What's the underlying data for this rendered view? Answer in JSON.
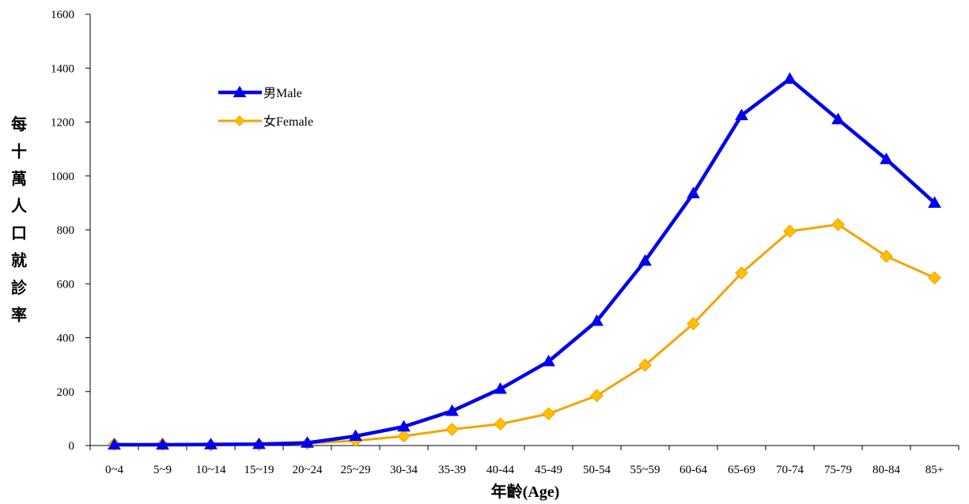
{
  "colors": {
    "male": "#0000ee",
    "female": "#f5a300",
    "female_marker": "#ffc000",
    "axis": "#000000"
  },
  "chart_data": {
    "type": "line",
    "title": "",
    "xlabel": "年齡(Age)",
    "ylabel": "每十萬人口就診率",
    "ylim": [
      0,
      1600
    ],
    "yticks": [
      0,
      200,
      400,
      600,
      800,
      1000,
      1200,
      1400,
      1600
    ],
    "grid": false,
    "legend_position": "top-left",
    "categories": [
      "0~4",
      "5~9",
      "10~14",
      "15~19",
      "20~24",
      "25~29",
      "30-34",
      "35-39",
      "40-44",
      "45-49",
      "50-54",
      "55~59",
      "60-64",
      "65-69",
      "70-74",
      "75-79",
      "80-84",
      "85+"
    ],
    "series": [
      {
        "name": "男Male",
        "marker": "triangle",
        "values": [
          3,
          3,
          4,
          5,
          10,
          35,
          70,
          128,
          210,
          312,
          462,
          685,
          935,
          1225,
          1360,
          1210,
          1062,
          900
        ]
      },
      {
        "name": "女Female",
        "marker": "diamond",
        "values": [
          5,
          5,
          2,
          4,
          8,
          18,
          35,
          60,
          80,
          118,
          185,
          298,
          452,
          640,
          795,
          820,
          702,
          622
        ]
      }
    ]
  }
}
